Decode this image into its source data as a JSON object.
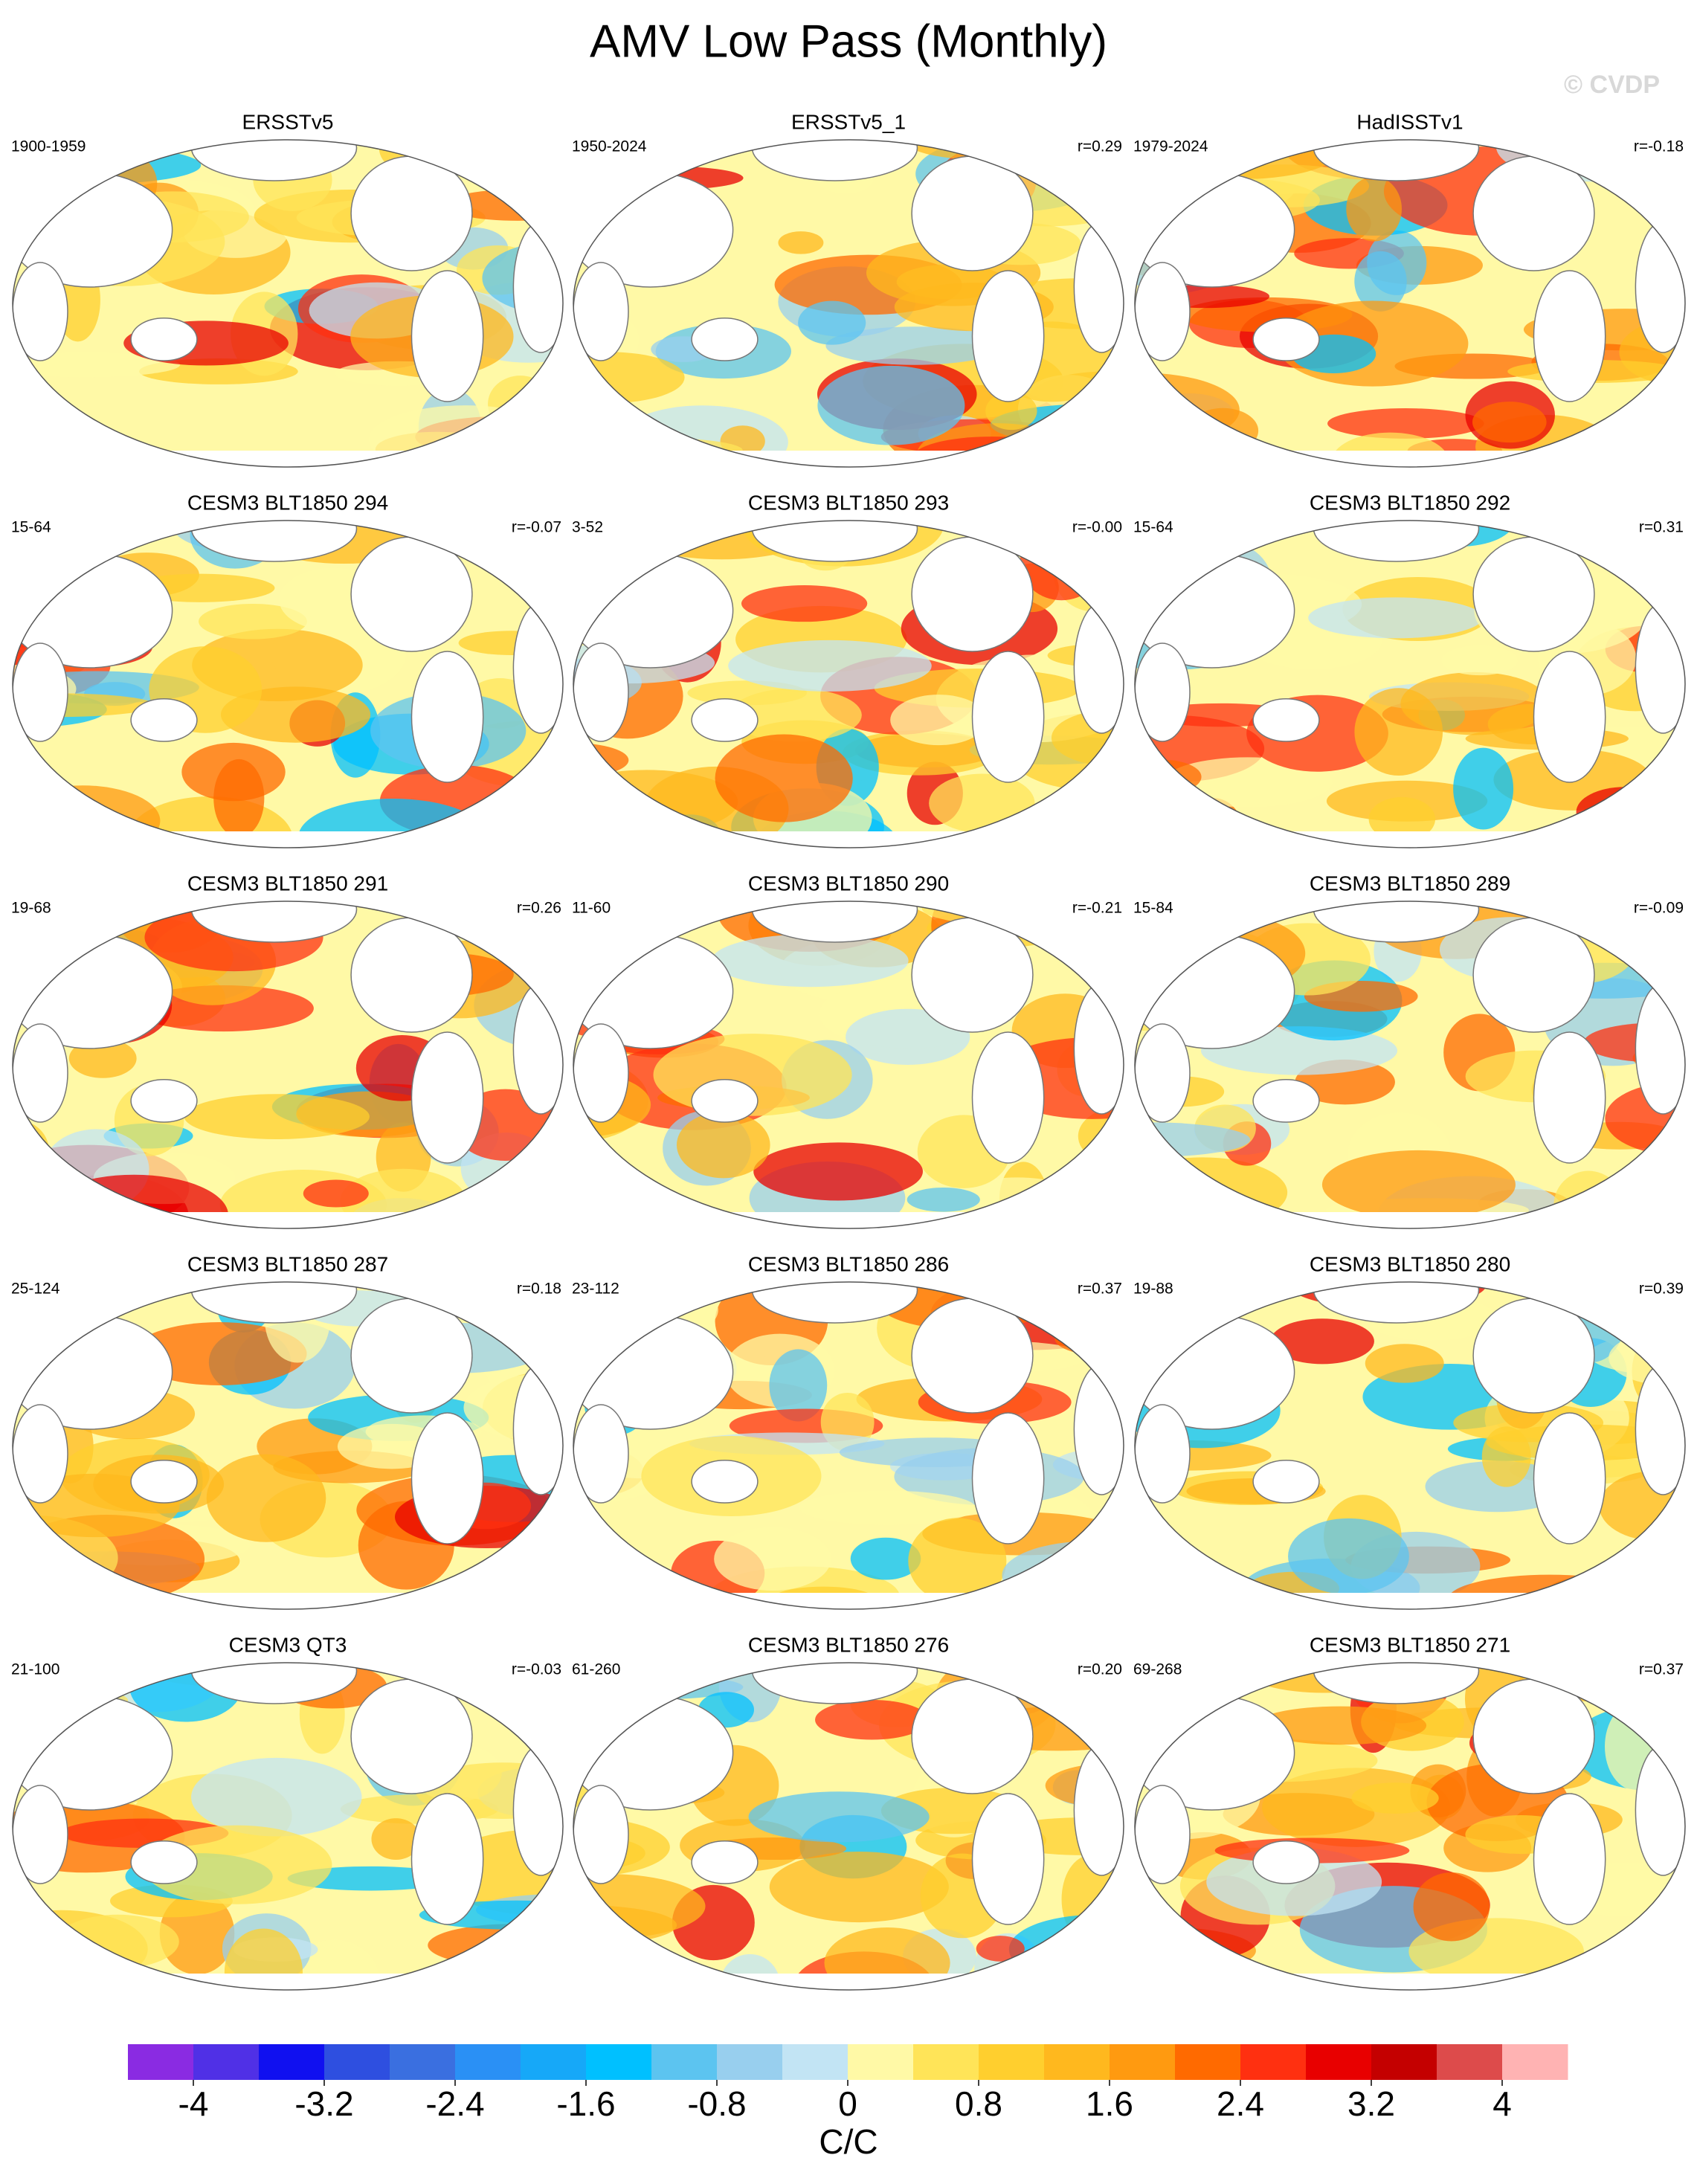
{
  "title": "AMV Low Pass (Monthly)",
  "watermark": "© CVDP",
  "panels": [
    {
      "title": "ERSSTv5",
      "period": "1900-1959"
    },
    {
      "title": "ERSSTv5_1",
      "period": "1950-2024",
      "r": "r=0.29"
    },
    {
      "title": "HadISSTv1",
      "period": "1979-2024",
      "r": "r=-0.18"
    },
    {
      "title": "CESM3 BLT1850 294",
      "period": "15-64",
      "r": "r=-0.07"
    },
    {
      "title": "CESM3 BLT1850 293",
      "period": "3-52",
      "r": "r=-0.00"
    },
    {
      "title": "CESM3 BLT1850 292",
      "period": "15-64",
      "r": "r=0.31"
    },
    {
      "title": "CESM3 BLT1850 291",
      "period": "19-68",
      "r": "r=0.26"
    },
    {
      "title": "CESM3 BLT1850 290",
      "period": "11-60",
      "r": "r=-0.21"
    },
    {
      "title": "CESM3 BLT1850 289",
      "period": "15-84",
      "r": "r=-0.09"
    },
    {
      "title": "CESM3 BLT1850 287",
      "period": "25-124",
      "r": "r=0.18"
    },
    {
      "title": "CESM3 BLT1850 286",
      "period": "23-112",
      "r": "r=0.37"
    },
    {
      "title": "CESM3 BLT1850 280",
      "period": "19-88",
      "r": "r=0.39"
    },
    {
      "title": "CESM3 QT3",
      "period": "21-100",
      "r": "r=-0.03"
    },
    {
      "title": "CESM3 BLT1850 276",
      "period": "61-260",
      "r": "r=0.20"
    },
    {
      "title": "CESM3 BLT1850 271",
      "period": "69-268",
      "r": "r=0.37"
    }
  ],
  "colorbar": {
    "colors": [
      "#8a2be2",
      "#5030e6",
      "#1010f0",
      "#2e4fe0",
      "#3a6fe0",
      "#2a90f5",
      "#16a8f8",
      "#00c0ff",
      "#5cc4f0",
      "#98cfee",
      "#c2e4f4",
      "#fff9a6",
      "#ffe458",
      "#ffcf2e",
      "#ffb81e",
      "#ff9a10",
      "#ff6a00",
      "#ff3010",
      "#e80000",
      "#c40000",
      "#dd4b4b",
      "#ffb3b3"
    ],
    "lim": [
      -4.4,
      4.4
    ],
    "ticks": [
      -4,
      -3.2,
      -2.4,
      -1.6,
      -0.8,
      0,
      0.8,
      1.6,
      2.4,
      3.2,
      4
    ],
    "label": "C/C"
  }
}
